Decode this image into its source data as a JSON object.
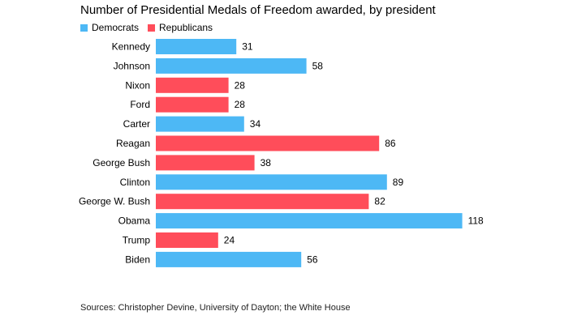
{
  "chart_data": {
    "type": "bar",
    "orientation": "horizontal",
    "subtitle": "Number of Presidential Medals of Freedom awarded, by president",
    "legend": {
      "placement": "top-left",
      "entries": [
        {
          "name": "Democrats",
          "color": "#4db8f5"
        },
        {
          "name": "Republicans",
          "color": "#ff4d5a"
        }
      ]
    },
    "categories": [
      "Kennedy",
      "Johnson",
      "Nixon",
      "Ford",
      "Carter",
      "Reagan",
      "George Bush",
      "Clinton",
      "George W. Bush",
      "Obama",
      "Trump",
      "Biden"
    ],
    "values": [
      31,
      58,
      28,
      28,
      34,
      86,
      38,
      89,
      82,
      118,
      24,
      56
    ],
    "party": [
      "Democrats",
      "Democrats",
      "Republicans",
      "Republicans",
      "Democrats",
      "Republicans",
      "Republicans",
      "Democrats",
      "Republicans",
      "Democrats",
      "Republicans",
      "Democrats"
    ],
    "xlim": [
      0,
      118
    ],
    "grid": false,
    "data_labels": true
  },
  "source": "Sources: Christopher Devine, University of Dayton; the White House"
}
